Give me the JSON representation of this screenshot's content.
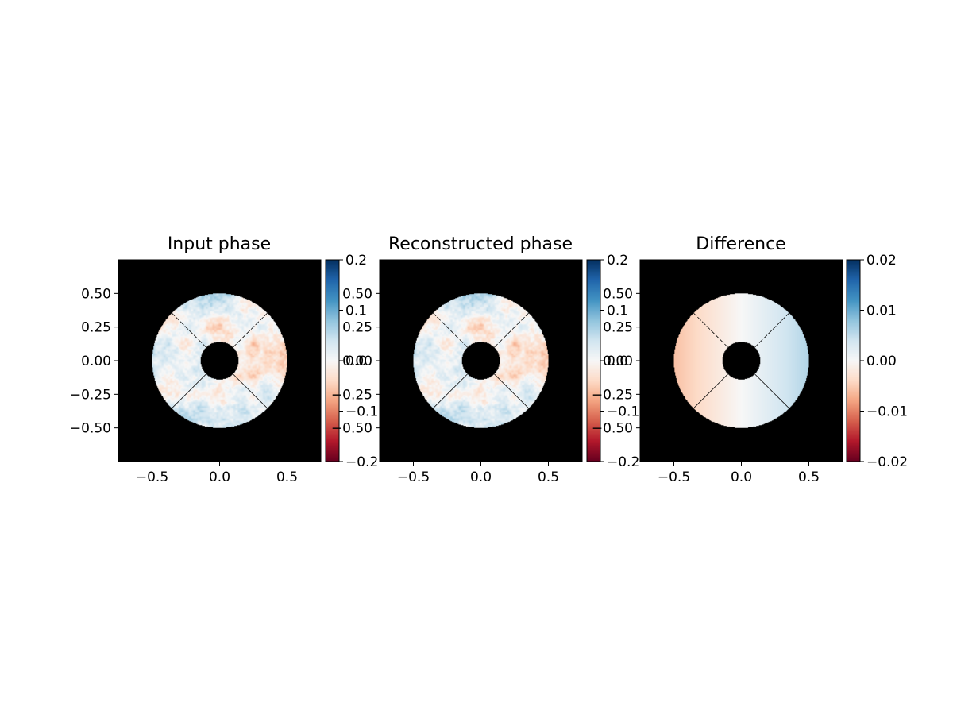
{
  "chart_data": [
    {
      "type": "heatmap",
      "title": "Input phase",
      "xlim": [
        -0.75,
        0.75
      ],
      "ylim": [
        -0.75,
        0.75
      ],
      "xticks": [
        "−0.5",
        "0.0",
        "0.5"
      ],
      "yticks": [
        "0.50",
        "0.25",
        "0.00",
        "−0.25",
        "−0.50"
      ],
      "colormap": "RdBu",
      "colorbar_range": [
        -0.2,
        0.2
      ],
      "colorbar_ticks": [
        "0.2",
        "0.1",
        "0.0",
        "−0.1",
        "−0.2"
      ],
      "aperture": {
        "outer_radius": 0.5,
        "inner_radius": 0.14,
        "spiders": 4
      },
      "field": {
        "pattern": "turbulence",
        "tilt": [
          -0.04,
          0.07
        ],
        "noise_amplitude": 0.07,
        "max_abs": 0.2
      }
    },
    {
      "type": "heatmap",
      "title": "Reconstructed phase",
      "xlim": [
        -0.75,
        0.75
      ],
      "ylim": [
        -0.75,
        0.75
      ],
      "xticks": [
        "−0.5",
        "0.0",
        "0.5"
      ],
      "yticks": [],
      "colormap": "RdBu",
      "colorbar_range": [
        -0.2,
        0.2
      ],
      "colorbar_ticks": [
        "0.2",
        "0.1",
        "0.0",
        "−0.1",
        "−0.2"
      ],
      "aperture": {
        "outer_radius": 0.5,
        "inner_radius": 0.14,
        "spiders": 4
      },
      "field": {
        "pattern": "turbulence",
        "tilt": [
          -0.04,
          0.07
        ],
        "noise_amplitude": 0.07,
        "max_abs": 0.2
      }
    },
    {
      "type": "heatmap",
      "title": "Difference",
      "xlim": [
        -0.75,
        0.75
      ],
      "ylim": [
        -0.75,
        0.75
      ],
      "xticks": [
        "−0.5",
        "0.0",
        "0.5"
      ],
      "yticks": [],
      "colormap": "RdBu",
      "colorbar_range": [
        -0.02,
        0.02
      ],
      "colorbar_ticks": [
        "0.02",
        "0.01",
        "0.00",
        "−0.01",
        "−0.02"
      ],
      "aperture": {
        "outer_radius": 0.5,
        "inner_radius": 0.14,
        "spiders": 4
      },
      "field": {
        "pattern": "tilt",
        "tilt": [
          0.012,
          0.0
        ],
        "noise_amplitude": 0.0,
        "max_abs": 0.02
      }
    }
  ],
  "overlay_ticks": [
    "0.50",
    "0.25",
    "0.00",
    "−0.25",
    "−0.50"
  ]
}
